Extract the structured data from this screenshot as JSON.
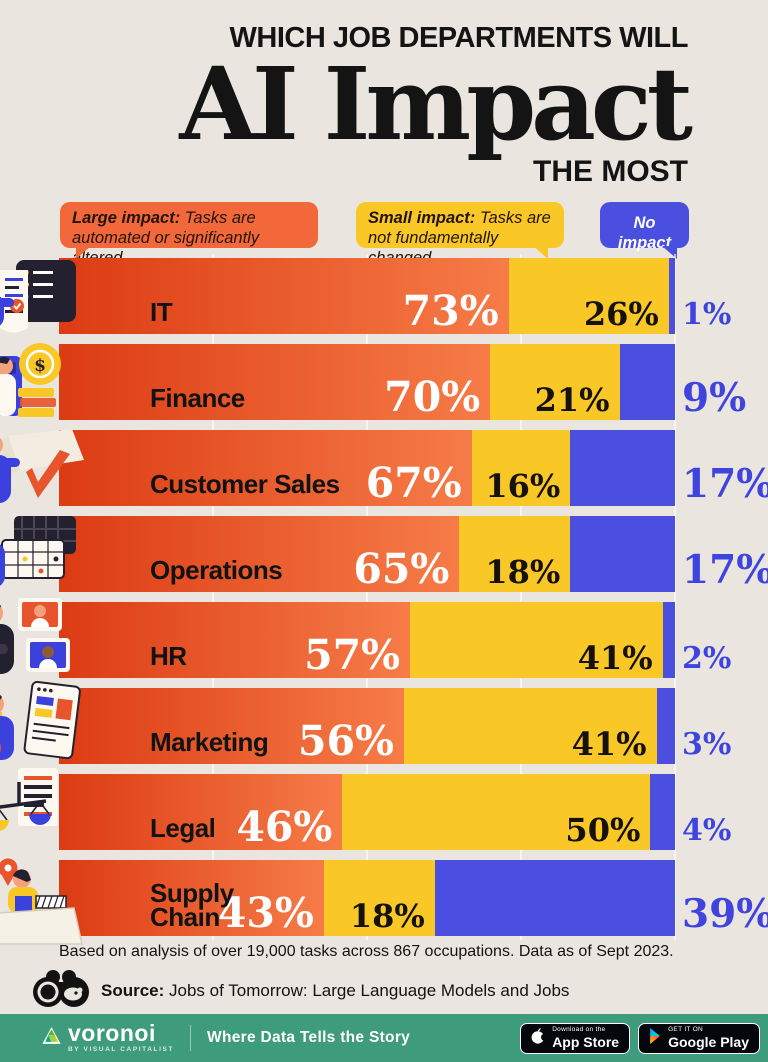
{
  "title": {
    "line1": "WHICH JOB DEPARTMENTS WILL",
    "line2": "AI Impact",
    "line3": "THE MOST"
  },
  "legend": {
    "large": {
      "bold": "Large impact:",
      "rest": " Tasks are automated or significantly altered"
    },
    "small": {
      "bold": "Small impact:",
      "rest": " Tasks are not fundamentally changed"
    },
    "none": {
      "bold": "No impact",
      "rest": ""
    }
  },
  "chart_data": {
    "type": "bar",
    "stacked": true,
    "orientation": "horizontal",
    "xlim": [
      0,
      100
    ],
    "value_suffix": "%",
    "legend_position": "top",
    "grid": "quarter-lines",
    "categories": [
      "IT",
      "Finance",
      "Customer Sales",
      "Operations",
      "HR",
      "Marketing",
      "Legal",
      "Supply Chain"
    ],
    "series": [
      {
        "name": "Large impact",
        "color": "#F2683A",
        "values": [
          73,
          70,
          67,
          65,
          57,
          56,
          46,
          43
        ]
      },
      {
        "name": "Small impact",
        "color": "#F9C827",
        "values": [
          26,
          21,
          16,
          18,
          41,
          41,
          50,
          18
        ]
      },
      {
        "name": "No impact",
        "color": "#4B4FE0",
        "values": [
          1,
          9,
          17,
          17,
          2,
          3,
          4,
          39
        ]
      }
    ]
  },
  "row_display": [
    {
      "id": "it",
      "icon": "it-checklist-illustration",
      "wrap": false
    },
    {
      "id": "finance",
      "icon": "finance-coins-illustration",
      "wrap": false
    },
    {
      "id": "sales",
      "icon": "customer-sales-box-illustration",
      "wrap": false
    },
    {
      "id": "operations",
      "icon": "operations-calendar-illustration",
      "wrap": false
    },
    {
      "id": "hr",
      "icon": "hr-video-call-illustration",
      "wrap": false
    },
    {
      "id": "marketing",
      "icon": "marketing-browser-illustration",
      "wrap": false
    },
    {
      "id": "legal",
      "icon": "legal-scales-illustration",
      "wrap": false
    },
    {
      "id": "supply",
      "icon": "supply-chain-map-illustration",
      "wrap": true
    }
  ],
  "note": "Based on analysis of over 19,000 tasks across 867 occupations. Data as of Sept 2023.",
  "source": {
    "label": "Source:",
    "text": " Jobs of Tomorrow: Large Language Models and Jobs"
  },
  "footer": {
    "brand": "voronoi",
    "brand_sub": "BY VISUAL CAPITALIST",
    "tagline": "Where Data Tells the Story",
    "app_store": {
      "line1": "Download on the",
      "line2": "App Store"
    },
    "google_play": {
      "line1": "GET IT ON",
      "line2": "Google Play"
    }
  },
  "colors": {
    "background": "#EAE6DF",
    "large_impact_gradient_start": "#DC3B13",
    "large_impact_gradient_end": "#F67C48",
    "small_impact": "#F9C827",
    "no_impact": "#4B4FE0",
    "no_impact_label_text": "#3F44DF",
    "footer_green": "#3E9B7B",
    "title_text": "#141414"
  }
}
